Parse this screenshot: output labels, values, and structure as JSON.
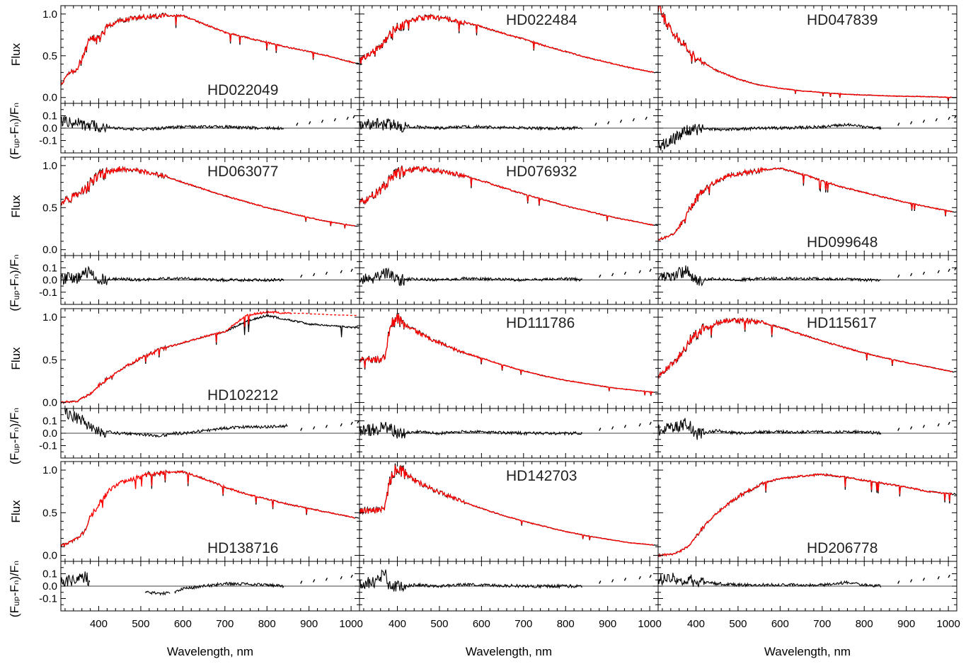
{
  "chart_data": {
    "type": "line",
    "layout": "grid of 4 rows x 3 columns; each cell has a Flux panel with a residual panel below it",
    "xlim": [
      310,
      1020
    ],
    "x_ticks": [
      "400",
      "500",
      "600",
      "700",
      "800",
      "900",
      "1000"
    ],
    "xlabel": "Wavelength, nm",
    "flux_ylabel": "Flux",
    "flux_ylim": [
      -0.07,
      1.1
    ],
    "flux_ticks": [
      "0.0",
      "0.5",
      "1.0"
    ],
    "resid_ylabel": "(Fᵤₚ-Fₙ)/Fₙ",
    "resid_ylim": [
      -0.2,
      0.2
    ],
    "resid_ticks": [
      "0.1",
      "0.0",
      "-0.1"
    ],
    "colors": {
      "observed": "#000000",
      "model": "#ff0000",
      "axes": "#000000"
    },
    "panels": [
      {
        "star": "HD022049",
        "label_pos": "bottom",
        "model_range": [
          310,
          1010
        ],
        "flux_x": [
          310,
          330,
          350,
          370,
          380,
          400,
          420,
          450,
          480,
          520,
          560,
          600,
          650,
          700,
          750,
          800,
          850,
          900,
          950,
          1010
        ],
        "flux_y": [
          0.15,
          0.3,
          0.35,
          0.6,
          0.7,
          0.7,
          0.85,
          0.92,
          0.95,
          0.97,
          0.98,
          0.98,
          0.88,
          0.78,
          0.72,
          0.66,
          0.6,
          0.55,
          0.49,
          0.41
        ],
        "resid_x": [
          310,
          350,
          400,
          450,
          500,
          550,
          600,
          700,
          800,
          840
        ],
        "resid_y": [
          0.05,
          0.04,
          0.01,
          0.0,
          -0.01,
          0.0,
          0.01,
          0.01,
          0.0,
          0.0
        ],
        "resid_dots_x": [
          870,
          900,
          930,
          960,
          990,
          1005
        ]
      },
      {
        "star": "HD022484",
        "label_pos": "top",
        "model_range": [
          310,
          1010
        ],
        "flux_x": [
          310,
          330,
          350,
          370,
          380,
          400,
          420,
          450,
          480,
          520,
          560,
          600,
          650,
          700,
          750,
          800,
          850,
          900,
          950,
          1010
        ],
        "flux_y": [
          0.45,
          0.5,
          0.58,
          0.65,
          0.75,
          0.85,
          0.9,
          0.95,
          0.96,
          0.94,
          0.9,
          0.85,
          0.77,
          0.7,
          0.62,
          0.55,
          0.48,
          0.42,
          0.36,
          0.3
        ],
        "resid_x": [
          310,
          350,
          400,
          450,
          500,
          550,
          600,
          700,
          800,
          840
        ],
        "resid_y": [
          0.02,
          0.03,
          0.02,
          0.01,
          0.0,
          0.01,
          0.01,
          0.0,
          0.0,
          0.0
        ],
        "resid_dots_x": [
          870,
          900,
          930,
          960,
          990
        ]
      },
      {
        "star": "HD047839",
        "label_pos": "top",
        "model_range": [
          310,
          1010
        ],
        "flux_x": [
          310,
          330,
          350,
          380,
          400,
          450,
          500,
          550,
          600,
          650,
          700,
          750,
          800,
          850,
          900,
          950,
          1010
        ],
        "flux_y": [
          1.1,
          0.9,
          0.75,
          0.58,
          0.48,
          0.32,
          0.22,
          0.15,
          0.11,
          0.08,
          0.06,
          0.04,
          0.03,
          0.02,
          0.015,
          0.01,
          0.0
        ],
        "resid_x": [
          310,
          330,
          350,
          380,
          400,
          450,
          500,
          550,
          600,
          700,
          760,
          800,
          840
        ],
        "resid_y": [
          -0.15,
          -0.12,
          -0.08,
          -0.01,
          -0.01,
          -0.01,
          -0.01,
          0.0,
          0.0,
          0.01,
          0.03,
          0.01,
          0.0
        ],
        "resid_dots_x": [
          880,
          910,
          940,
          970,
          1000,
          1015
        ]
      },
      {
        "star": "HD063077",
        "label_pos": "top",
        "model_range": [
          310,
          1010
        ],
        "flux_x": [
          310,
          330,
          350,
          370,
          380,
          400,
          420,
          450,
          480,
          520,
          560,
          600,
          650,
          700,
          750,
          800,
          850,
          900,
          950,
          1010
        ],
        "flux_y": [
          0.55,
          0.6,
          0.65,
          0.72,
          0.8,
          0.88,
          0.92,
          0.96,
          0.95,
          0.92,
          0.87,
          0.8,
          0.72,
          0.64,
          0.57,
          0.5,
          0.44,
          0.38,
          0.33,
          0.28
        ],
        "resid_x": [
          310,
          350,
          380,
          400,
          450,
          500,
          550,
          600,
          700,
          800,
          840
        ],
        "resid_y": [
          0.01,
          0.02,
          0.08,
          0.0,
          0.01,
          0.0,
          0.01,
          0.01,
          0.0,
          0.0,
          0.0
        ],
        "resid_dots_x": [
          880,
          910,
          940,
          975,
          1000
        ]
      },
      {
        "star": "HD076932",
        "label_pos": "top",
        "model_range": [
          310,
          1010
        ],
        "flux_x": [
          310,
          330,
          350,
          370,
          380,
          400,
          420,
          450,
          480,
          520,
          560,
          600,
          650,
          700,
          750,
          800,
          850,
          900,
          950,
          1010
        ],
        "flux_y": [
          0.55,
          0.6,
          0.67,
          0.75,
          0.82,
          0.9,
          0.94,
          0.96,
          0.95,
          0.92,
          0.88,
          0.82,
          0.74,
          0.66,
          0.59,
          0.52,
          0.46,
          0.4,
          0.35,
          0.29
        ],
        "resid_x": [
          310,
          350,
          380,
          400,
          450,
          500,
          550,
          600,
          700,
          800,
          840
        ],
        "resid_y": [
          0.01,
          0.02,
          0.06,
          0.0,
          0.01,
          0.0,
          0.01,
          0.01,
          0.0,
          0.01,
          0.0
        ],
        "resid_dots_x": [
          880,
          910,
          940,
          975,
          1000
        ]
      },
      {
        "star": "HD099648",
        "label_pos": "bottom",
        "model_range": [
          310,
          1010
        ],
        "flux_x": [
          310,
          330,
          350,
          370,
          380,
          400,
          420,
          450,
          480,
          520,
          560,
          600,
          650,
          700,
          750,
          800,
          850,
          900,
          950,
          1010
        ],
        "flux_y": [
          0.12,
          0.15,
          0.2,
          0.35,
          0.45,
          0.6,
          0.72,
          0.82,
          0.88,
          0.92,
          0.95,
          0.97,
          0.9,
          0.82,
          0.74,
          0.68,
          0.62,
          0.56,
          0.51,
          0.45
        ],
        "resid_x": [
          310,
          350,
          380,
          400,
          450,
          500,
          550,
          600,
          700,
          800,
          840
        ],
        "resid_y": [
          0.02,
          0.04,
          0.08,
          0.0,
          0.01,
          0.0,
          0.01,
          0.01,
          0.01,
          0.0,
          0.0
        ],
        "resid_dots_x": [
          880,
          910,
          940,
          975,
          1000,
          1015
        ]
      },
      {
        "star": "HD102212",
        "label_pos": "bottom",
        "model_range": [
          310,
          1010
        ],
        "model_dotted_from": 860,
        "flux_x": [
          310,
          350,
          380,
          400,
          450,
          500,
          550,
          600,
          650,
          700,
          750,
          800,
          850,
          900,
          950,
          1010
        ],
        "flux_y": [
          0.0,
          0.02,
          0.1,
          0.2,
          0.38,
          0.52,
          0.63,
          0.7,
          0.77,
          0.83,
          0.95,
          1.02,
          0.97,
          0.92,
          0.9,
          0.88
        ],
        "model_y": [
          0.0,
          0.02,
          0.1,
          0.2,
          0.38,
          0.52,
          0.63,
          0.7,
          0.77,
          0.83,
          1.02,
          1.06,
          1.05,
          1.04,
          1.03,
          1.02
        ],
        "resid_x": [
          310,
          330,
          350,
          380,
          400,
          450,
          500,
          550,
          580,
          600,
          650,
          700,
          750,
          800,
          850
        ],
        "resid_y": [
          0.2,
          0.16,
          0.12,
          0.06,
          0.02,
          0.0,
          -0.01,
          -0.02,
          0.0,
          0.0,
          0.02,
          0.04,
          0.05,
          0.05,
          0.06
        ],
        "resid_dots_x": [
          880,
          910,
          940,
          975,
          1000,
          1015
        ]
      },
      {
        "star": "HD111786",
        "label_pos": "top",
        "model_range": [
          310,
          1010
        ],
        "flux_x": [
          310,
          350,
          370,
          380,
          390,
          400,
          420,
          450,
          480,
          520,
          560,
          600,
          650,
          700,
          750,
          800,
          850,
          900,
          950,
          1010
        ],
        "flux_y": [
          0.5,
          0.5,
          0.52,
          0.8,
          0.95,
          1.0,
          0.9,
          0.82,
          0.74,
          0.66,
          0.58,
          0.52,
          0.44,
          0.37,
          0.31,
          0.26,
          0.22,
          0.18,
          0.15,
          0.12
        ],
        "resid_x": [
          310,
          350,
          380,
          400,
          450,
          500,
          550,
          600,
          700,
          800,
          840
        ],
        "resid_y": [
          0.02,
          0.03,
          0.05,
          0.0,
          0.01,
          0.0,
          0.01,
          0.01,
          0.0,
          0.0,
          0.0
        ],
        "resid_dots_x": [
          880,
          910,
          940,
          975,
          1000
        ]
      },
      {
        "star": "HD115617",
        "label_pos": "top",
        "model_range": [
          310,
          1010
        ],
        "flux_x": [
          310,
          330,
          350,
          370,
          380,
          400,
          420,
          450,
          480,
          520,
          560,
          600,
          650,
          700,
          750,
          800,
          850,
          900,
          950,
          1010
        ],
        "flux_y": [
          0.3,
          0.4,
          0.48,
          0.6,
          0.7,
          0.8,
          0.86,
          0.93,
          0.96,
          0.96,
          0.93,
          0.88,
          0.8,
          0.72,
          0.65,
          0.58,
          0.52,
          0.47,
          0.42,
          0.36
        ],
        "resid_x": [
          310,
          350,
          380,
          400,
          450,
          500,
          550,
          600,
          700,
          800,
          840
        ],
        "resid_y": [
          0.02,
          0.05,
          0.08,
          -0.01,
          0.02,
          0.0,
          0.01,
          0.01,
          0.01,
          0.01,
          0.0
        ],
        "resid_dots_x": [
          880,
          910,
          940,
          975,
          1000
        ]
      },
      {
        "star": "HD138716",
        "label_pos": "bottom",
        "model_range": [
          310,
          1010
        ],
        "obs_gaps": [
          [
            380,
            510
          ],
          [
            570,
            580
          ]
        ],
        "flux_x": [
          310,
          330,
          350,
          370,
          380,
          400,
          420,
          450,
          480,
          520,
          560,
          600,
          650,
          700,
          750,
          800,
          850,
          900,
          950,
          1010
        ],
        "flux_y": [
          0.12,
          0.15,
          0.2,
          0.3,
          0.45,
          0.6,
          0.75,
          0.85,
          0.9,
          0.95,
          0.97,
          0.98,
          0.9,
          0.8,
          0.72,
          0.66,
          0.6,
          0.55,
          0.5,
          0.44
        ],
        "resid_x": [
          310,
          350,
          370,
          380,
          510,
          550,
          580,
          600,
          700,
          800,
          840
        ],
        "resid_y": [
          0.03,
          0.06,
          0.08,
          0.0,
          -0.05,
          -0.06,
          -0.05,
          -0.02,
          0.02,
          0.01,
          0.0
        ],
        "resid_dots_x": [
          880,
          910,
          940,
          975,
          1000
        ]
      },
      {
        "star": "HD142703",
        "label_pos": "top",
        "model_range": [
          310,
          1010
        ],
        "flux_x": [
          310,
          350,
          370,
          380,
          390,
          400,
          420,
          450,
          480,
          520,
          560,
          600,
          650,
          700,
          750,
          800,
          850,
          900,
          950,
          1010
        ],
        "flux_y": [
          0.52,
          0.52,
          0.55,
          0.82,
          0.97,
          1.02,
          0.95,
          0.86,
          0.78,
          0.7,
          0.62,
          0.55,
          0.47,
          0.4,
          0.34,
          0.28,
          0.23,
          0.19,
          0.15,
          0.12
        ],
        "resid_x": [
          310,
          350,
          370,
          380,
          400,
          450,
          500,
          550,
          600,
          700,
          800,
          840
        ],
        "resid_y": [
          0.02,
          0.03,
          0.12,
          0.0,
          0.0,
          0.01,
          0.0,
          0.01,
          0.01,
          0.0,
          0.0,
          0.0
        ],
        "resid_dots_x": [
          880,
          910,
          940,
          975,
          1000
        ]
      },
      {
        "star": "HD206778",
        "label_pos": "bottom",
        "model_range": [
          310,
          1010
        ],
        "flux_x": [
          310,
          350,
          380,
          400,
          420,
          450,
          480,
          520,
          560,
          600,
          650,
          700,
          750,
          800,
          850,
          900,
          950,
          1010
        ],
        "flux_y": [
          0.0,
          0.02,
          0.1,
          0.22,
          0.35,
          0.5,
          0.62,
          0.75,
          0.85,
          0.9,
          0.93,
          0.95,
          0.92,
          0.88,
          0.84,
          0.8,
          0.75,
          0.72
        ],
        "resid_x": [
          310,
          350,
          400,
          450,
          500,
          550,
          600,
          700,
          760,
          800,
          840
        ],
        "resid_y": [
          0.05,
          0.06,
          0.04,
          0.02,
          0.01,
          0.01,
          0.01,
          0.01,
          0.03,
          0.01,
          0.0
        ],
        "resid_dots_x": [
          880,
          910,
          940,
          975,
          1000
        ]
      }
    ]
  }
}
